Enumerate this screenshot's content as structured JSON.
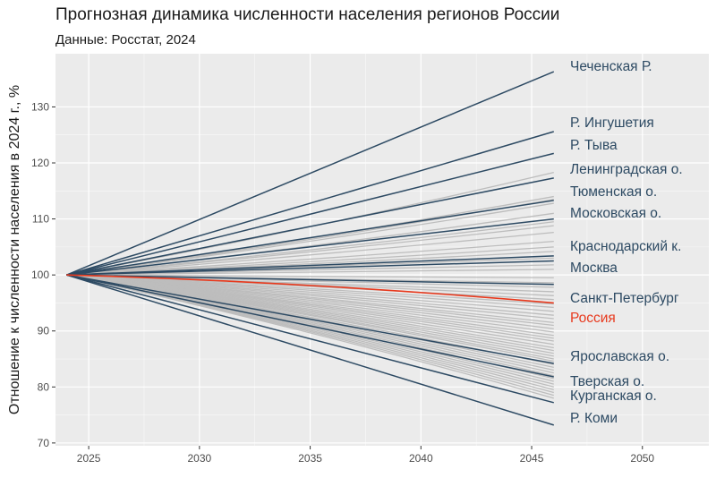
{
  "title": "Прогнозная динамика численности населения регионов России",
  "subtitle": "Данные: Росстат, 2024",
  "chart_data": {
    "type": "line",
    "xlabel": "",
    "ylabel": "Отношение к численности населения в 2024 г., %",
    "xlim": [
      2023.5,
      2053
    ],
    "ylim": [
      69.5,
      139.5
    ],
    "xticks": [
      2025,
      2030,
      2035,
      2040,
      2045,
      2050
    ],
    "yticks": [
      70,
      80,
      90,
      100,
      110,
      120,
      130
    ],
    "grid": true,
    "x_start": 2024,
    "x_end": 2046,
    "colors": {
      "highlight": "#2d4a63",
      "russia": "#e8391d",
      "other": "#bdbdbd",
      "panel": "#ebebeb",
      "grid": "#ffffff"
    },
    "highlighted_series": [
      {
        "name": "Чеченская Р.",
        "start": 100,
        "end": 136.3
      },
      {
        "name": "Р. Ингушетия",
        "start": 100,
        "end": 125.6
      },
      {
        "name": "Р. Тыва",
        "start": 100,
        "end": 121.7
      },
      {
        "name": "Ленинградская о.",
        "start": 100,
        "end": 117.3
      },
      {
        "name": "Тюменская о.",
        "start": 100,
        "end": 113.3
      },
      {
        "name": "Московская о.",
        "start": 100,
        "end": 110.0
      },
      {
        "name": "Краснодарский к.",
        "start": 100,
        "end": 103.4
      },
      {
        "name": "Москва",
        "start": 100,
        "end": 102.5
      },
      {
        "name": "Санкт-Петербург",
        "start": 100,
        "end": 98.3
      },
      {
        "name": "Ярославская о.",
        "start": 100,
        "end": 84.2
      },
      {
        "name": "Тверская о.",
        "start": 100,
        "end": 81.8
      },
      {
        "name": "Курганская о.",
        "start": 100,
        "end": 77.2
      },
      {
        "name": "Р. Коми",
        "start": 100,
        "end": 73.2
      }
    ],
    "russia_series": {
      "name": "Россия",
      "start": 100,
      "end": 95.0
    },
    "other_series_end_values": [
      118.3,
      114.0,
      113.5,
      112.8,
      111.0,
      109.5,
      108.8,
      107.6,
      106.0,
      105.0,
      104.2,
      103.0,
      101.8,
      101.0,
      99.5,
      98.6,
      97.8,
      97.0,
      96.3,
      95.6,
      94.8,
      94.2,
      93.5,
      92.8,
      92.2,
      91.5,
      91.0,
      90.4,
      89.8,
      89.2,
      88.7,
      88.2,
      87.6,
      87.0,
      86.5,
      86.0,
      85.5,
      85.0,
      84.6,
      84.0,
      83.5,
      83.0,
      82.5,
      82.0,
      81.5,
      81.0,
      80.5,
      80.0,
      79.5,
      79.0,
      78.5,
      78.0
    ]
  }
}
